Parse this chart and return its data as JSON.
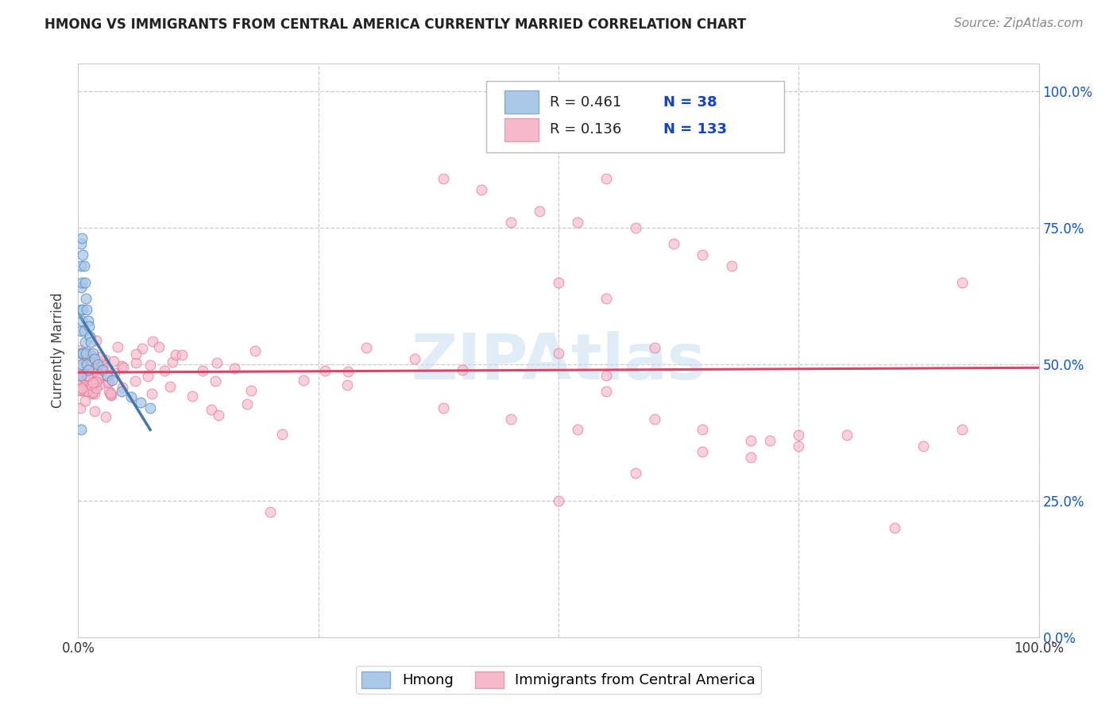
{
  "title": "HMONG VS IMMIGRANTS FROM CENTRAL AMERICA CURRENTLY MARRIED CORRELATION CHART",
  "source_text": "Source: ZipAtlas.com",
  "ylabel": "Currently Married",
  "xlim": [
    0.0,
    1.0
  ],
  "ylim": [
    0.0,
    1.05
  ],
  "y_tick_positions": [
    0.0,
    0.25,
    0.5,
    0.75,
    1.0
  ],
  "y_tick_labels": [
    "0.0%",
    "25.0%",
    "50.0%",
    "75.0%",
    "100.0%"
  ],
  "legend_R1": "0.461",
  "legend_N1": "38",
  "legend_R2": "0.136",
  "legend_N2": "133",
  "hmong_scatter_face": "#a8c8e8",
  "hmong_scatter_edge": "#5588bb",
  "ca_scatter_face": "#f8b8cc",
  "ca_scatter_edge": "#e07090",
  "hmong_line_color": "#4477aa",
  "ca_line_color": "#dd4466",
  "legend_hmong_face": "#aac8e8",
  "legend_ca_face": "#f8b8cc",
  "watermark_color": "#c8ddf0",
  "grid_color": "#cccccc",
  "title_color": "#222222",
  "tick_label_color_blue": "#1155cc",
  "tick_label_color_black": "#333333",
  "ylabel_color": "#444444",
  "background": "#ffffff"
}
